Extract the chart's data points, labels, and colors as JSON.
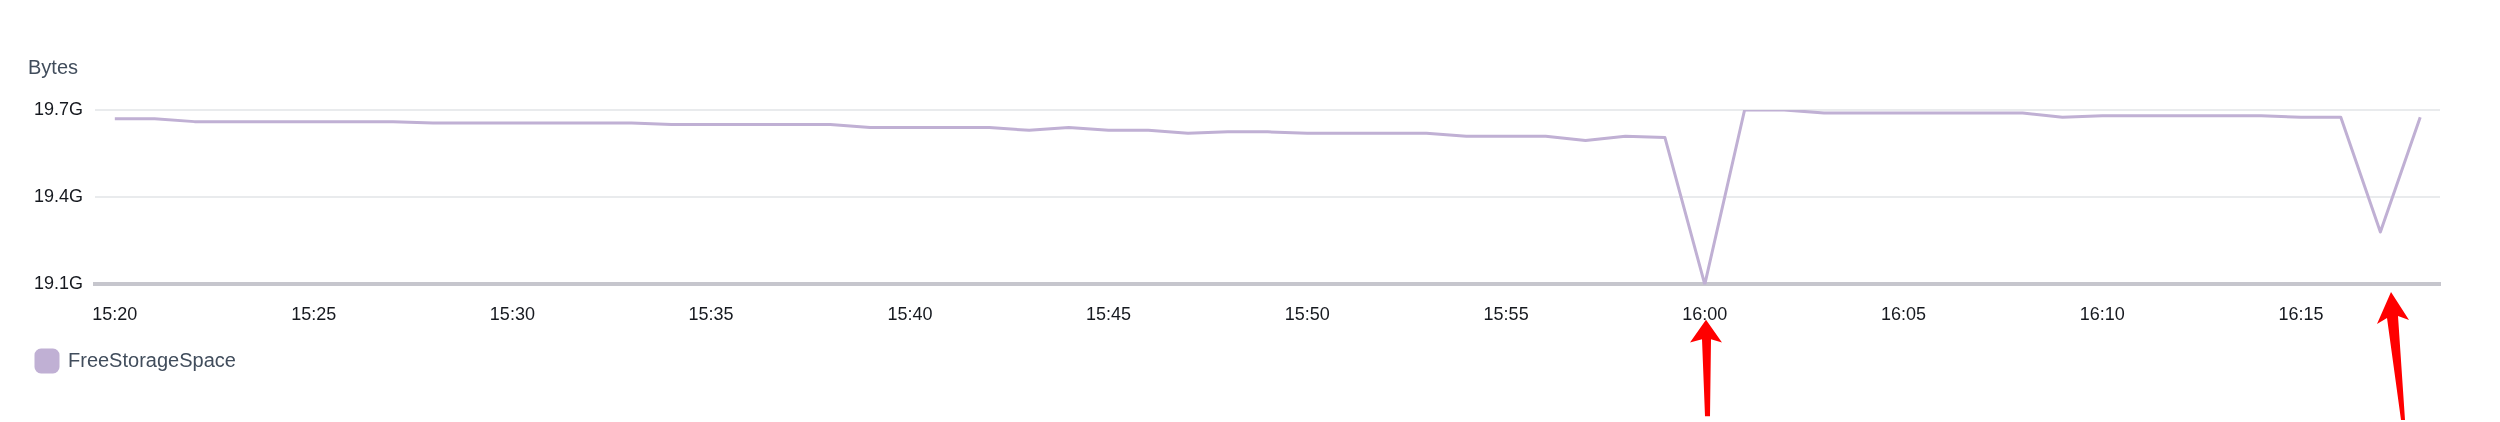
{
  "chart_data": {
    "type": "line",
    "ylabel": "Bytes",
    "x": [
      15.3333,
      15.35,
      15.3667,
      15.3833,
      15.4,
      15.4167,
      15.4333,
      15.45,
      15.4667,
      15.4833,
      15.5,
      15.5167,
      15.5333,
      15.55,
      15.5667,
      15.5833,
      15.6,
      15.6167,
      15.6333,
      15.65,
      15.6667,
      15.6833,
      15.7,
      15.7167,
      15.7333,
      15.75,
      15.7667,
      15.7833,
      15.8,
      15.8167,
      15.8333,
      15.85,
      15.8667,
      15.8833,
      15.9,
      15.9167,
      15.9333,
      15.95,
      15.9667,
      15.9833,
      16,
      16.0167,
      16.0333,
      16.05,
      16.0667,
      16.0833,
      16.1,
      16.1167,
      16.1333,
      16.15,
      16.1667,
      16.1833,
      16.2,
      16.2167,
      16.2333,
      16.25,
      16.2667,
      16.2833,
      16.3
    ],
    "series": [
      {
        "name": "FreeStorageSpace",
        "color": "#c0b0d4",
        "values": [
          19.67,
          19.67,
          19.66,
          19.66,
          19.66,
          19.66,
          19.66,
          19.66,
          19.655,
          19.655,
          19.655,
          19.655,
          19.655,
          19.655,
          19.65,
          19.65,
          19.65,
          19.65,
          19.65,
          19.64,
          19.64,
          19.64,
          19.64,
          19.63,
          19.64,
          19.63,
          19.63,
          19.62,
          19.625,
          19.625,
          19.62,
          19.62,
          19.62,
          19.62,
          19.61,
          19.61,
          19.61,
          19.595,
          19.61,
          19.605,
          19.1,
          19.7,
          19.7,
          19.69,
          19.69,
          19.69,
          19.69,
          19.69,
          19.69,
          19.675,
          19.68,
          19.68,
          19.68,
          19.68,
          19.68,
          19.675,
          19.675,
          19.28,
          19.675
        ]
      }
    ],
    "xlim": [
      15.325,
      16.3083
    ],
    "xticks": [
      {
        "value": 15.3333,
        "label": "15:20"
      },
      {
        "value": 15.4167,
        "label": "15:25"
      },
      {
        "value": 15.5,
        "label": "15:30"
      },
      {
        "value": 15.5833,
        "label": "15:35"
      },
      {
        "value": 15.6667,
        "label": "15:40"
      },
      {
        "value": 15.75,
        "label": "15:45"
      },
      {
        "value": 15.8333,
        "label": "15:50"
      },
      {
        "value": 15.9167,
        "label": "15:55"
      },
      {
        "value": 16,
        "label": "16:00"
      },
      {
        "value": 16.0833,
        "label": "16:05"
      },
      {
        "value": 16.1667,
        "label": "16:10"
      },
      {
        "value": 16.25,
        "label": "16:15"
      }
    ],
    "ylim": [
      19.1,
      19.7
    ],
    "yticks": [
      {
        "value": 19.1,
        "label": "19.1G"
      },
      {
        "value": 19.4,
        "label": "19.4G"
      },
      {
        "value": 19.7,
        "label": "19.7G"
      }
    ],
    "grid": "y",
    "legend": "bottom left",
    "marker": "none",
    "line_style": "solid"
  }
}
